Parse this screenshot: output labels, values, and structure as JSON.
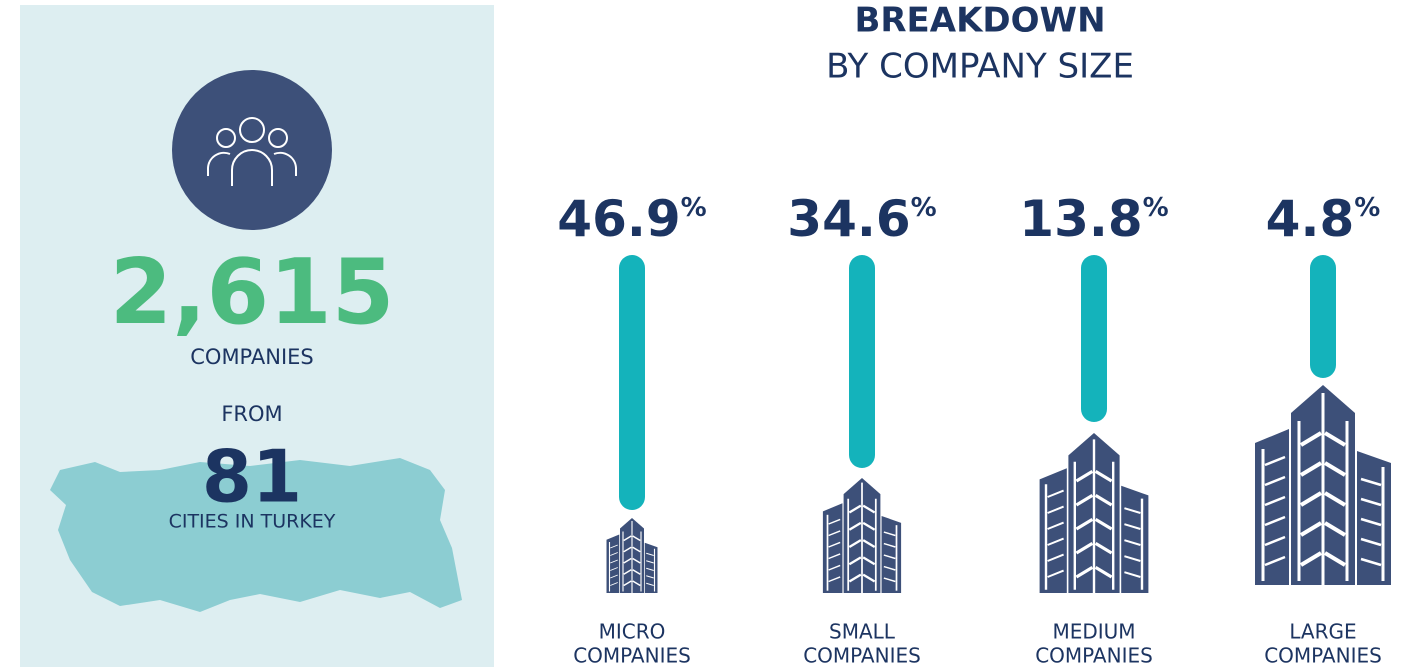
{
  "summary": {
    "count": "2,615",
    "count_label": "COMPANIES",
    "from": "FROM",
    "cities": "81",
    "cities_label": "CITIES IN TURKEY"
  },
  "breakdown": {
    "title": "BREAKDOWN",
    "subtitle": "BY COMPANY SIZE",
    "items": [
      {
        "value": "46.9",
        "unit": "%",
        "label": [
          "MICRO",
          "COMPANIES"
        ]
      },
      {
        "value": "34.6",
        "unit": "%",
        "label": [
          "SMALL",
          "COMPANIES"
        ]
      },
      {
        "value": "13.8",
        "unit": "%",
        "label": [
          "MEDIUM",
          "COMPANIES"
        ]
      },
      {
        "value": "4.8",
        "unit": "%",
        "label": [
          "LARGE",
          "COMPANIES"
        ]
      }
    ]
  }
}
